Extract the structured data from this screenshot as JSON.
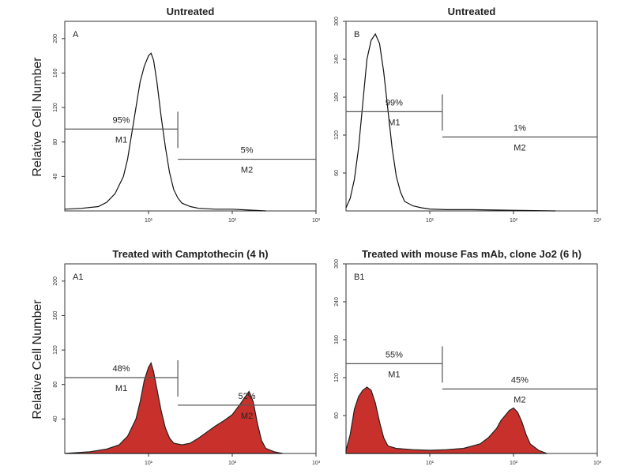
{
  "ylabel": "Relative Cell Number",
  "chart_data": [
    {
      "id": "A",
      "type": "histogram",
      "title": "Untreated",
      "panel_label": "A",
      "x_log": true,
      "xlim": [
        0,
        3
      ],
      "x_ticks": [
        "10¹",
        "10²",
        "10³"
      ],
      "x_tick_values": [
        1,
        2,
        3
      ],
      "ylim": [
        0,
        220
      ],
      "y_ticks": [
        40,
        80,
        120,
        160,
        200
      ],
      "filled": false,
      "x": [
        0.0,
        0.2,
        0.4,
        0.5,
        0.6,
        0.7,
        0.75,
        0.8,
        0.85,
        0.9,
        0.95,
        1.0,
        1.03,
        1.06,
        1.1,
        1.15,
        1.2,
        1.25,
        1.3,
        1.35,
        1.4,
        1.5,
        1.6,
        1.8,
        2.0,
        2.2,
        2.4
      ],
      "y": [
        2,
        3,
        5,
        10,
        20,
        40,
        60,
        90,
        120,
        150,
        168,
        180,
        183,
        175,
        150,
        110,
        75,
        45,
        25,
        15,
        9,
        5,
        3,
        2,
        2,
        1,
        0
      ],
      "gates": [
        {
          "name": "M1",
          "percent": "95%",
          "x_start": 0.0,
          "x_end": 1.35,
          "y": 95
        },
        {
          "name": "M2",
          "percent": "5%",
          "x_start": 1.35,
          "x_end": 3.0,
          "y": 60
        }
      ]
    },
    {
      "id": "B",
      "type": "histogram",
      "title": "Untreated",
      "panel_label": "B",
      "x_log": true,
      "xlim": [
        0,
        3
      ],
      "x_ticks": [
        "10¹",
        "10²",
        "10³"
      ],
      "x_tick_values": [
        1,
        2,
        3
      ],
      "ylim": [
        0,
        300
      ],
      "y_ticks": [
        60,
        120,
        180,
        240,
        300
      ],
      "filled": false,
      "x": [
        0.0,
        0.05,
        0.1,
        0.15,
        0.2,
        0.25,
        0.3,
        0.35,
        0.4,
        0.45,
        0.5,
        0.55,
        0.6,
        0.65,
        0.7,
        0.8,
        0.9,
        1.0,
        1.2,
        1.5,
        2.0,
        2.5
      ],
      "y": [
        5,
        20,
        50,
        100,
        170,
        240,
        270,
        280,
        265,
        220,
        160,
        100,
        55,
        30,
        15,
        8,
        5,
        3,
        2,
        2,
        1,
        0
      ],
      "gates": [
        {
          "name": "M1",
          "percent": "99%",
          "x_start": 0.0,
          "x_end": 1.15,
          "y": 157
        },
        {
          "name": "M2",
          "percent": "1%",
          "x_start": 1.15,
          "x_end": 3.0,
          "y": 117
        }
      ]
    },
    {
      "id": "A1",
      "type": "histogram",
      "title": "Treated with Camptothecin (4 h)",
      "panel_label": "A1",
      "x_log": true,
      "xlim": [
        0,
        3
      ],
      "x_ticks": [
        "10¹",
        "10²",
        "10³"
      ],
      "x_tick_values": [
        1,
        2,
        3
      ],
      "ylim": [
        0,
        220
      ],
      "y_ticks": [
        40,
        80,
        120,
        160,
        200
      ],
      "filled": true,
      "x": [
        0.0,
        0.3,
        0.5,
        0.65,
        0.75,
        0.85,
        0.9,
        0.95,
        1.0,
        1.03,
        1.06,
        1.1,
        1.15,
        1.2,
        1.25,
        1.3,
        1.4,
        1.5,
        1.6,
        1.7,
        1.8,
        1.9,
        2.0,
        2.1,
        2.15,
        2.2,
        2.25,
        2.3,
        2.35,
        2.4,
        2.5,
        2.6
      ],
      "y": [
        0,
        2,
        5,
        10,
        20,
        40,
        60,
        85,
        100,
        105,
        95,
        75,
        50,
        30,
        18,
        12,
        10,
        12,
        18,
        25,
        32,
        38,
        45,
        58,
        65,
        72,
        60,
        35,
        15,
        6,
        2,
        0
      ],
      "gates": [
        {
          "name": "M1",
          "percent": "48%",
          "x_start": 0.0,
          "x_end": 1.35,
          "y": 88
        },
        {
          "name": "M2",
          "percent": "52%",
          "x_start": 1.35,
          "x_end": 3.0,
          "y": 56
        }
      ]
    },
    {
      "id": "B1",
      "type": "histogram",
      "title": "Treated with mouse Fas mAb, clone Jo2 (6 h)",
      "panel_label": "B1",
      "x_log": true,
      "xlim": [
        0,
        3
      ],
      "x_ticks": [
        "10¹",
        "10²",
        "10³"
      ],
      "x_tick_values": [
        1,
        2,
        3
      ],
      "ylim": [
        0,
        300
      ],
      "y_ticks": [
        60,
        120,
        180,
        240,
        300
      ],
      "filled": true,
      "x": [
        0.0,
        0.05,
        0.1,
        0.15,
        0.2,
        0.25,
        0.3,
        0.35,
        0.4,
        0.45,
        0.5,
        0.6,
        0.8,
        1.0,
        1.2,
        1.4,
        1.6,
        1.7,
        1.8,
        1.85,
        1.9,
        1.95,
        2.0,
        2.05,
        2.1,
        2.15,
        2.2,
        2.3,
        2.4
      ],
      "y": [
        5,
        30,
        70,
        90,
        100,
        105,
        100,
        80,
        50,
        25,
        12,
        8,
        6,
        5,
        6,
        8,
        15,
        25,
        40,
        52,
        60,
        68,
        72,
        65,
        50,
        30,
        15,
        5,
        0
      ],
      "gates": [
        {
          "name": "M1",
          "percent": "55%",
          "x_start": 0.0,
          "x_end": 1.15,
          "y": 142
        },
        {
          "name": "M2",
          "percent": "45%",
          "x_start": 1.15,
          "x_end": 3.0,
          "y": 102
        }
      ]
    }
  ]
}
